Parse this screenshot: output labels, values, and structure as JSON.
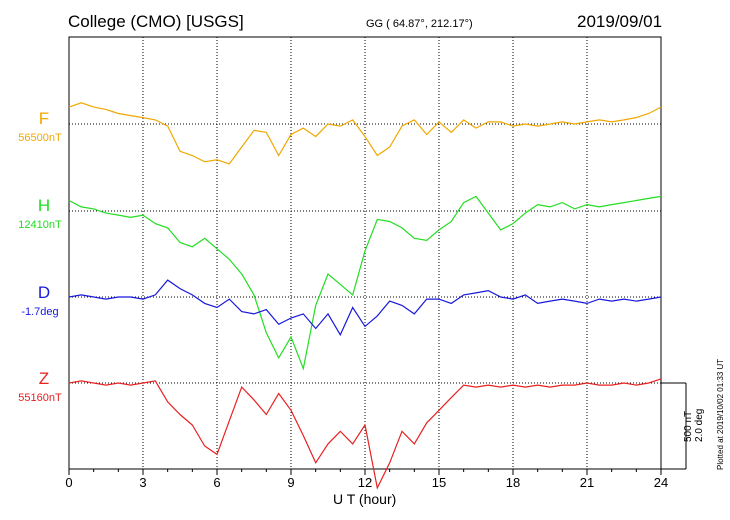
{
  "header": {
    "station": "College (CMO)  [USGS]",
    "coords": "GG ( 64.87°, 212.17°)",
    "date": "2019/09/01"
  },
  "footer": {
    "plotted": "Plotted at 2019/10/02 01:33 UT",
    "scale_nt": "500 nT",
    "scale_deg": "2.0 deg"
  },
  "chart_data": {
    "type": "line",
    "title": "College (CMO)  [USGS]",
    "xlabel": "U T (hour)",
    "ylabel": "",
    "xlim": [
      0,
      24
    ],
    "x_ticks": [
      "0",
      "3",
      "6",
      "9",
      "12",
      "15",
      "18",
      "21",
      "24"
    ],
    "grid": true,
    "vertical_scale": {
      "per_division_nT": 500,
      "per_division_deg": 2.0
    },
    "x": [
      0,
      0.5,
      1,
      1.5,
      2,
      2.5,
      3,
      3.5,
      4,
      4.5,
      5,
      5.5,
      6,
      6.5,
      7,
      7.5,
      8,
      8.5,
      9,
      9.5,
      10,
      10.5,
      11,
      11.5,
      12,
      12.5,
      13,
      13.5,
      14,
      14.5,
      15,
      15.5,
      16,
      16.5,
      17,
      17.5,
      18,
      18.5,
      19,
      19.5,
      20,
      20.5,
      21,
      21.5,
      22,
      22.5,
      23,
      23.5,
      24
    ],
    "series": [
      {
        "name": "F",
        "baseline_label": "56500nT",
        "color": "#f0a800",
        "values": [
          98,
          123,
          98,
          85,
          61,
          49,
          37,
          24,
          -12,
          -159,
          -183,
          -220,
          -208,
          -232,
          -134,
          -37,
          -49,
          -183,
          -61,
          -24,
          -73,
          0,
          -12,
          24,
          -73,
          -183,
          -134,
          -12,
          24,
          -61,
          12,
          -49,
          24,
          -24,
          12,
          12,
          -12,
          0,
          -12,
          0,
          12,
          0,
          12,
          24,
          12,
          24,
          37,
          61,
          98
        ]
      },
      {
        "name": "H",
        "baseline_label": "12410nT",
        "color": "#22dd22",
        "values": [
          61,
          24,
          12,
          -12,
          -24,
          -37,
          -24,
          -73,
          -98,
          -183,
          -208,
          -159,
          -220,
          -281,
          -366,
          -488,
          -708,
          -854,
          -732,
          -916,
          -549,
          -366,
          -427,
          -488,
          -232,
          -49,
          -61,
          -98,
          -159,
          -171,
          -110,
          -61,
          49,
          85,
          -12,
          -110,
          -73,
          -12,
          37,
          24,
          49,
          12,
          37,
          24,
          37,
          49,
          61,
          73,
          85
        ]
      },
      {
        "name": "D",
        "baseline_label": "-1.7deg",
        "color": "#1818dd",
        "values": [
          0,
          12,
          0,
          -12,
          0,
          0,
          -12,
          12,
          98,
          49,
          12,
          -37,
          -61,
          -12,
          -85,
          -98,
          -73,
          -159,
          -122,
          -98,
          -183,
          -98,
          -220,
          -61,
          -171,
          -110,
          -24,
          -49,
          -98,
          -12,
          -12,
          -37,
          12,
          24,
          37,
          0,
          -12,
          12,
          -37,
          -24,
          -12,
          -24,
          -37,
          -12,
          -24,
          -12,
          -24,
          -12,
          0
        ]
      },
      {
        "name": "Z",
        "baseline_label": "55160nT",
        "color": "#e82020",
        "values": [
          0,
          12,
          0,
          -12,
          0,
          -12,
          0,
          12,
          -110,
          -183,
          -244,
          -366,
          -415,
          -220,
          -24,
          -98,
          -183,
          -61,
          -159,
          -305,
          -464,
          -354,
          -281,
          -354,
          -244,
          -610,
          -464,
          -281,
          -354,
          -232,
          -159,
          -85,
          -12,
          -24,
          -12,
          -24,
          -12,
          -24,
          -12,
          -24,
          -12,
          -12,
          0,
          -12,
          -12,
          0,
          -12,
          0,
          24
        ]
      }
    ]
  }
}
